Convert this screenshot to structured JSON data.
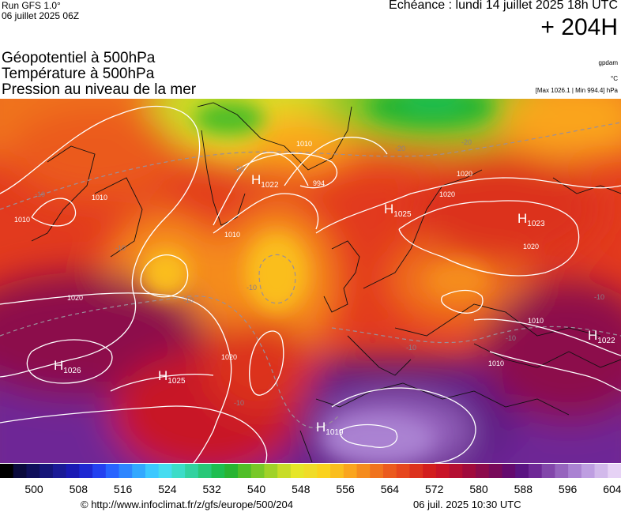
{
  "header": {
    "run_label": "Run GFS 1.0°",
    "run_date": "06 juillet 2025 06Z",
    "valid_time": "Echéance : lundi 14 juillet 2025 18h UTC",
    "lead_time": "+ 204H"
  },
  "fields": [
    "Géopotentiel à 500hPa",
    "Température à 500hPa",
    "Pression au niveau de la mer"
  ],
  "units": {
    "geopotential": "gpdam",
    "temperature": "°C"
  },
  "pressure_range": "[Max 1026.1 | Min 994.4] hPa",
  "pressure_centers": [
    {
      "letter": "H",
      "value": "1022",
      "label_pos": [
        318,
        233
      ]
    },
    {
      "letter": "H",
      "value": "1025",
      "label_pos": [
        486,
        270
      ]
    },
    {
      "letter": "H",
      "value": "1023",
      "label_pos": [
        655,
        282
      ]
    },
    {
      "letter": "H",
      "value": "1022",
      "label_pos": [
        744,
        430
      ]
    },
    {
      "letter": "H",
      "value": "1026",
      "label_pos": [
        68,
        468
      ]
    },
    {
      "letter": "H",
      "value": "1025",
      "label_pos": [
        200,
        481
      ]
    },
    {
      "letter": "H",
      "value": "1019",
      "label_pos": [
        400,
        546
      ]
    }
  ],
  "isobar_labels": [
    "1010",
    "1010",
    "1020",
    "1010",
    "1020",
    "1020",
    "1020",
    "1010",
    "1010",
    "1010",
    "1020",
    "994"
  ],
  "isotherm_labels": [
    "-20",
    "-20",
    "-10",
    "-10",
    "-10",
    "-10",
    "-10",
    "-10",
    "-10",
    "-20",
    "-10"
  ],
  "colorbar": {
    "tick_labels": [
      "500",
      "508",
      "516",
      "524",
      "532",
      "540",
      "548",
      "556",
      "564",
      "572",
      "580",
      "588",
      "596",
      "604"
    ],
    "colors": [
      "#000000",
      "#0a0a3c",
      "#0f0f5a",
      "#151578",
      "#1a1a96",
      "#1a1ab4",
      "#1e28d2",
      "#2341f0",
      "#2864ff",
      "#2e86ff",
      "#32a8ff",
      "#3cc8ff",
      "#46dcf0",
      "#3cdcc8",
      "#32d2a0",
      "#28c878",
      "#1ebe50",
      "#28b432",
      "#50be28",
      "#78c828",
      "#a0d228",
      "#c8dc28",
      "#e6e628",
      "#f0dc28",
      "#fad21e",
      "#fabe1e",
      "#faa51e",
      "#f58c1e",
      "#f0731e",
      "#eb5a1e",
      "#e6461e",
      "#dc321e",
      "#d21e1e",
      "#c81428",
      "#b40f32",
      "#a00a3c",
      "#8c0a4b",
      "#780a5a",
      "#640a6e",
      "#5a1482",
      "#6e2896",
      "#8246aa",
      "#9664be",
      "#aa82d2",
      "#be9ee1",
      "#d2b9eb",
      "#e6d2f5"
    ]
  },
  "footer": {
    "url": "© http://www.infoclimat.fr/z/gfs/europe/500/204",
    "timestamp": "06 juil. 2025 10:30 UTC"
  }
}
